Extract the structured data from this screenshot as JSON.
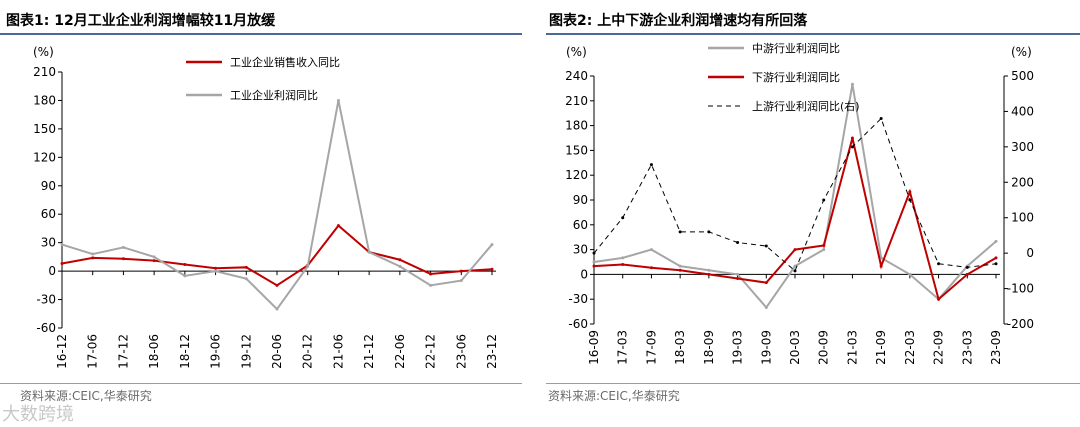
{
  "left": {
    "title": "图表1:  12月工业企业利润增幅较11月放缓",
    "source": "资料来源:CEIC,华泰研究",
    "colors": {
      "rule": "#4a6a96",
      "red": "#c00000",
      "gray": "#a6a6a6"
    }
  },
  "right": {
    "title": "图表2:  上中下游企业利润增速均有所回落",
    "source": "资料来源:CEIC,华泰研究",
    "colors": {
      "rule": "#4a6a96",
      "red": "#c00000",
      "gray": "#a6a6a6",
      "black": "#000000"
    }
  },
  "watermark": "大数跨境",
  "chart_data": [
    {
      "type": "line",
      "title": "图表1:  12月工业企业利润增幅较11月放缓",
      "ylabel": "(%)",
      "ylim": [
        -60,
        210
      ],
      "yticks": [
        -60,
        -30,
        0,
        30,
        60,
        90,
        120,
        150,
        180,
        210
      ],
      "categories": [
        "16-12",
        "17-06",
        "17-12",
        "18-06",
        "18-12",
        "19-06",
        "19-12",
        "20-06",
        "20-12",
        "21-06",
        "21-12",
        "22-06",
        "22-12",
        "23-06",
        "23-12"
      ],
      "series": [
        {
          "name": "工业企业销售收入同比",
          "color": "#c00000",
          "values": [
            8,
            14,
            13,
            11,
            7,
            3,
            4,
            -15,
            6,
            48,
            20,
            12,
            -3,
            0,
            2
          ]
        },
        {
          "name": "工业企业利润同比",
          "color": "#a6a6a6",
          "values": [
            28,
            18,
            25,
            15,
            -5,
            0,
            -8,
            -40,
            5,
            180,
            20,
            5,
            -15,
            -10,
            28
          ]
        }
      ]
    },
    {
      "type": "line",
      "title": "图表2:  上中下游企业利润增速均有所回落",
      "ylabel": "(%)",
      "ylabel_right": "(%)",
      "ylim": [
        -60,
        240
      ],
      "yticks": [
        -60,
        -30,
        0,
        30,
        60,
        90,
        120,
        150,
        180,
        210,
        240
      ],
      "ylim_right": [
        -200,
        500
      ],
      "yticks_right": [
        -200,
        -100,
        0,
        100,
        200,
        300,
        400,
        500
      ],
      "categories": [
        "16-09",
        "17-03",
        "17-09",
        "18-03",
        "18-09",
        "19-03",
        "19-09",
        "20-03",
        "20-09",
        "21-03",
        "21-09",
        "22-03",
        "22-09",
        "23-03",
        "23-09"
      ],
      "series": [
        {
          "name": "中游行业利润同比",
          "color": "#a6a6a6",
          "axis": "left",
          "values": [
            15,
            20,
            30,
            10,
            5,
            0,
            -40,
            10,
            30,
            230,
            20,
            0,
            -30,
            10,
            40
          ]
        },
        {
          "name": "下游行业利润同比",
          "color": "#c00000",
          "axis": "left",
          "values": [
            10,
            12,
            8,
            5,
            0,
            -5,
            -10,
            30,
            35,
            165,
            10,
            100,
            -30,
            0,
            20
          ]
        },
        {
          "name": "上游行业利润同比(右)",
          "color": "#000000",
          "axis": "right",
          "dash": true,
          "values": [
            0,
            100,
            250,
            60,
            60,
            30,
            20,
            -50,
            150,
            300,
            380,
            150,
            -30,
            -40,
            -30
          ]
        }
      ]
    }
  ]
}
